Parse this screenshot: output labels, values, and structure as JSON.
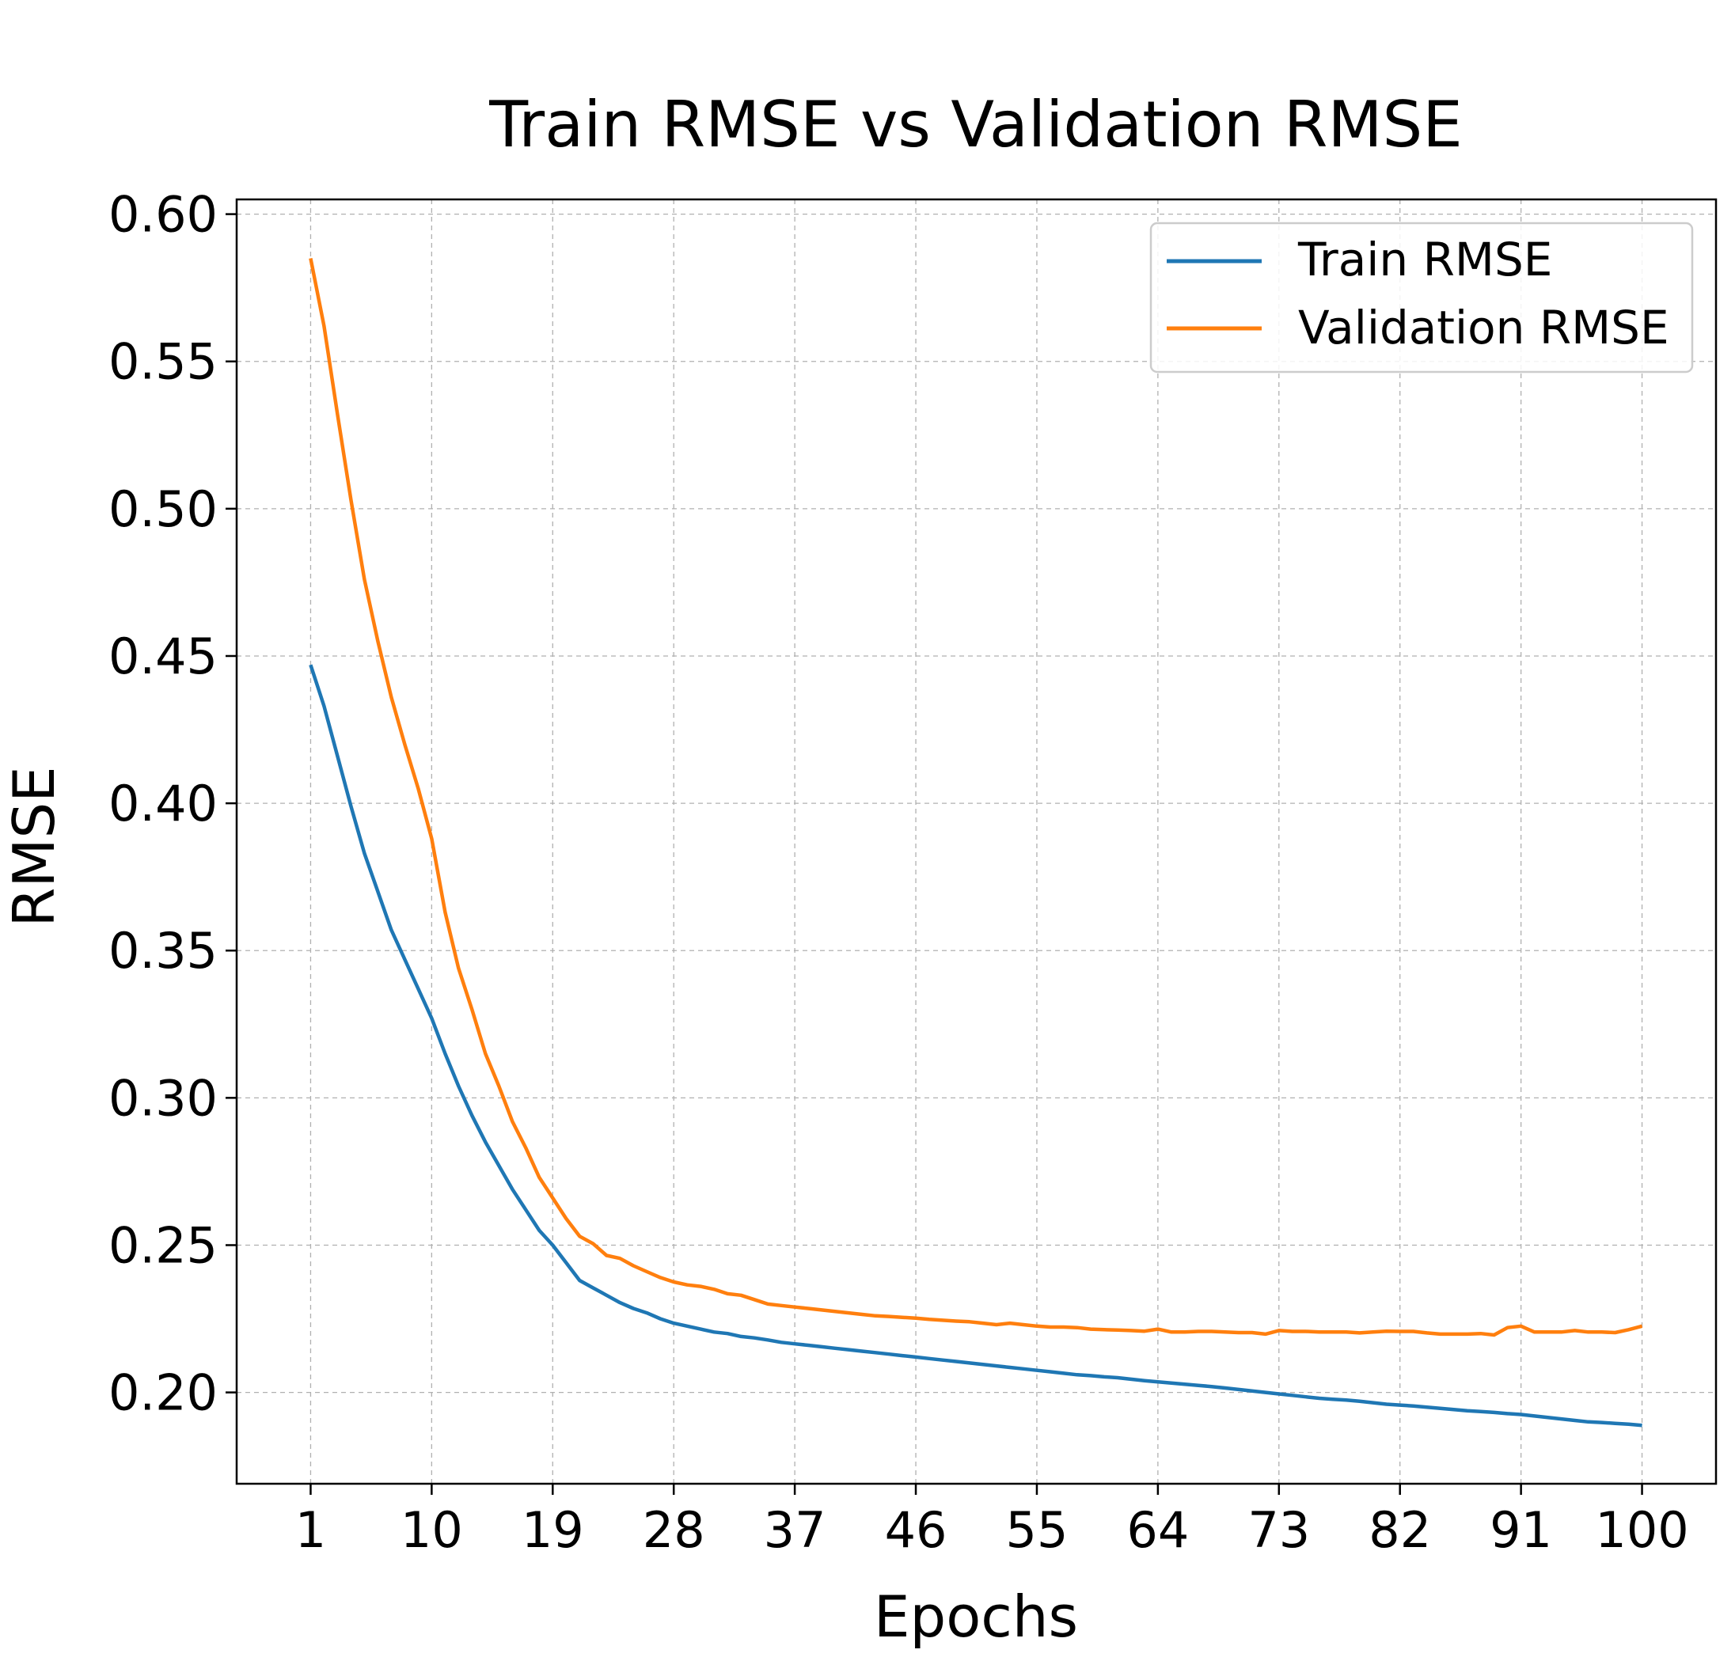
{
  "chart_data": {
    "type": "line",
    "title": "Train RMSE vs Validation RMSE",
    "xlabel": "Epochs",
    "ylabel": "RMSE",
    "xlim": [
      -4.5,
      105.5
    ],
    "ylim": [
      0.169,
      0.605
    ],
    "xticks": [
      1,
      10,
      19,
      28,
      37,
      46,
      55,
      64,
      73,
      82,
      91,
      100
    ],
    "xtick_labels": [
      "1",
      "10",
      "19",
      "28",
      "37",
      "46",
      "55",
      "64",
      "73",
      "82",
      "91",
      "100"
    ],
    "yticks": [
      0.2,
      0.25,
      0.3,
      0.35,
      0.4,
      0.45,
      0.5,
      0.55,
      0.6
    ],
    "ytick_labels": [
      "0.20",
      "0.25",
      "0.30",
      "0.35",
      "0.40",
      "0.45",
      "0.50",
      "0.55",
      "0.60"
    ],
    "grid": true,
    "legend_position": "upper-right",
    "x": [
      1,
      2,
      3,
      4,
      5,
      6,
      7,
      8,
      9,
      10,
      11,
      12,
      13,
      14,
      15,
      16,
      17,
      18,
      19,
      20,
      21,
      22,
      23,
      24,
      25,
      26,
      27,
      28,
      29,
      30,
      31,
      32,
      33,
      34,
      35,
      36,
      37,
      38,
      39,
      40,
      41,
      42,
      43,
      44,
      45,
      46,
      47,
      48,
      49,
      50,
      51,
      52,
      53,
      54,
      55,
      56,
      57,
      58,
      59,
      60,
      61,
      62,
      63,
      64,
      65,
      66,
      67,
      68,
      69,
      70,
      71,
      72,
      73,
      74,
      75,
      76,
      77,
      78,
      79,
      80,
      81,
      82,
      83,
      84,
      85,
      86,
      87,
      88,
      89,
      90,
      91,
      92,
      93,
      94,
      95,
      96,
      97,
      98,
      99,
      100
    ],
    "series": [
      {
        "name": "Train RMSE",
        "color": "#1f77b4",
        "values": [
          0.447,
          0.433,
          0.416,
          0.399,
          0.383,
          0.37,
          0.357,
          0.347,
          0.337,
          0.327,
          0.315,
          0.304,
          0.294,
          0.285,
          0.277,
          0.269,
          0.262,
          0.255,
          0.25,
          0.244,
          0.238,
          0.2355,
          0.233,
          0.2305,
          0.2285,
          0.227,
          0.225,
          0.2235,
          0.2225,
          0.2215,
          0.2205,
          0.22,
          0.219,
          0.2185,
          0.2178,
          0.217,
          0.2165,
          0.216,
          0.2155,
          0.215,
          0.2145,
          0.214,
          0.2135,
          0.213,
          0.2125,
          0.212,
          0.2115,
          0.211,
          0.2105,
          0.21,
          0.2095,
          0.209,
          0.2085,
          0.208,
          0.2075,
          0.207,
          0.2065,
          0.206,
          0.2057,
          0.2053,
          0.205,
          0.2045,
          0.204,
          0.2036,
          0.2032,
          0.2028,
          0.2024,
          0.202,
          0.2015,
          0.201,
          0.2005,
          0.2,
          0.1995,
          0.199,
          0.1985,
          0.198,
          0.1977,
          0.1974,
          0.197,
          0.1965,
          0.196,
          0.1957,
          0.1954,
          0.195,
          0.1946,
          0.1942,
          0.1938,
          0.1935,
          0.1932,
          0.1928,
          0.1925,
          0.192,
          0.1915,
          0.191,
          0.1905,
          0.19,
          0.1898,
          0.1895,
          0.1892,
          0.1888
        ]
      },
      {
        "name": "Validation RMSE",
        "color": "#ff7f0e",
        "values": [
          0.585,
          0.562,
          0.532,
          0.503,
          0.476,
          0.455,
          0.436,
          0.42,
          0.405,
          0.388,
          0.363,
          0.344,
          0.33,
          0.315,
          0.304,
          0.292,
          0.283,
          0.273,
          0.266,
          0.259,
          0.253,
          0.2505,
          0.2465,
          0.2455,
          0.243,
          0.241,
          0.239,
          0.2375,
          0.2365,
          0.236,
          0.235,
          0.2335,
          0.233,
          0.2315,
          0.23,
          0.2295,
          0.229,
          0.2285,
          0.228,
          0.2275,
          0.227,
          0.2265,
          0.226,
          0.2258,
          0.2255,
          0.2252,
          0.2248,
          0.2245,
          0.2242,
          0.224,
          0.2235,
          0.223,
          0.2235,
          0.223,
          0.2225,
          0.2222,
          0.2222,
          0.222,
          0.2215,
          0.2213,
          0.2212,
          0.221,
          0.2208,
          0.2215,
          0.2205,
          0.2205,
          0.2207,
          0.2207,
          0.2205,
          0.2203,
          0.2203,
          0.2198,
          0.221,
          0.2207,
          0.2207,
          0.2205,
          0.2205,
          0.2205,
          0.2202,
          0.2205,
          0.2208,
          0.2207,
          0.2207,
          0.2202,
          0.2198,
          0.2198,
          0.2198,
          0.22,
          0.2195,
          0.222,
          0.2225,
          0.2205,
          0.2205,
          0.2205,
          0.221,
          0.2205,
          0.2205,
          0.2203,
          0.2213,
          0.2225
        ]
      }
    ]
  }
}
